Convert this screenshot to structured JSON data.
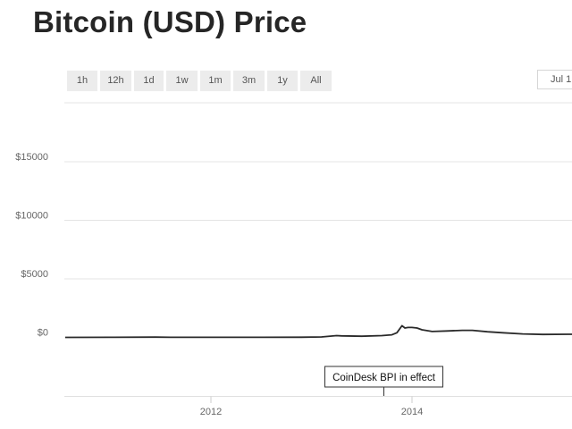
{
  "header": {
    "title": "Bitcoin (USD) Price"
  },
  "range_buttons": [
    "1h",
    "12h",
    "1d",
    "1w",
    "1m",
    "3m",
    "1y",
    "All"
  ],
  "date_input": {
    "value": "Jul 1"
  },
  "chart_data": {
    "type": "line",
    "title": "Bitcoin (USD) Price",
    "xlabel": "",
    "ylabel": "",
    "x_ticks": [
      "2012",
      "2014"
    ],
    "y_ticks": [
      "$0",
      "$5000",
      "$10000",
      "$15000"
    ],
    "ylim": [
      -200,
      19000
    ],
    "xlim": [
      2010.55,
      2015.95
    ],
    "grid": true,
    "series": [
      {
        "x": [
          2010.55,
          2011.0,
          2011.45,
          2011.6,
          2011.9,
          2012.0,
          2012.5,
          2012.9,
          2013.1,
          2013.25,
          2013.3,
          2013.5,
          2013.7,
          2013.8,
          2013.85,
          2013.9,
          2013.93,
          2013.96,
          2014.0,
          2014.05,
          2014.1,
          2014.2,
          2014.35,
          2014.5,
          2014.6,
          2014.75,
          2014.9,
          2015.1,
          2015.3,
          2015.6,
          2015.95
        ],
        "y": [
          0,
          5,
          25,
          10,
          5,
          5,
          10,
          12,
          40,
          150,
          130,
          100,
          150,
          220,
          400,
          1000,
          800,
          850,
          850,
          800,
          650,
          500,
          550,
          600,
          600,
          480,
          400,
          300,
          250,
          270,
          300
        ]
      }
    ],
    "annotations": [
      {
        "text": "CoinDesk BPI in effect",
        "x": 2013.72
      }
    ]
  }
}
